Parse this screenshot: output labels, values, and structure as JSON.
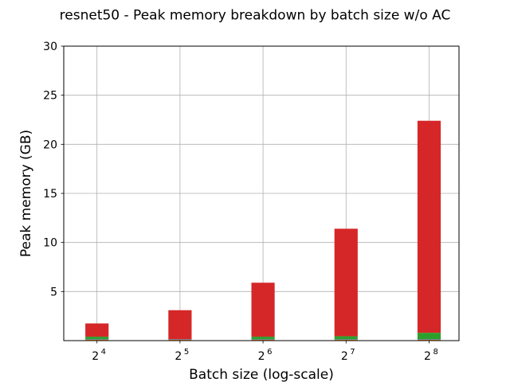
{
  "chart_data": {
    "type": "bar",
    "stacked": true,
    "title": "resnet50 - Peak memory breakdown by batch size w/o AC",
    "xlabel": "Batch size (log-scale)",
    "ylabel": "Peak memory (GB)",
    "x_scale": "log2",
    "x_base": "2",
    "x_exponents": [
      "4",
      "5",
      "6",
      "7",
      "8"
    ],
    "categories": [
      16,
      32,
      64,
      128,
      256
    ],
    "ylim": [
      0,
      30
    ],
    "yticks": [
      "5",
      "10",
      "15",
      "20",
      "25",
      "30"
    ],
    "grid": true,
    "series": [
      {
        "color": "#ff7f0e",
        "values": [
          0.1,
          0.1,
          0.1,
          0.1,
          0.1
        ]
      },
      {
        "color": "#1f77b4",
        "values": [
          0.05,
          0.05,
          0.05,
          0.05,
          0.05
        ]
      },
      {
        "color": "#2ca02c",
        "values": [
          0.25,
          0.0,
          0.25,
          0.3,
          0.65
        ]
      },
      {
        "color": "#d62728",
        "values": [
          1.35,
          2.95,
          5.5,
          10.95,
          21.6
        ]
      }
    ]
  }
}
